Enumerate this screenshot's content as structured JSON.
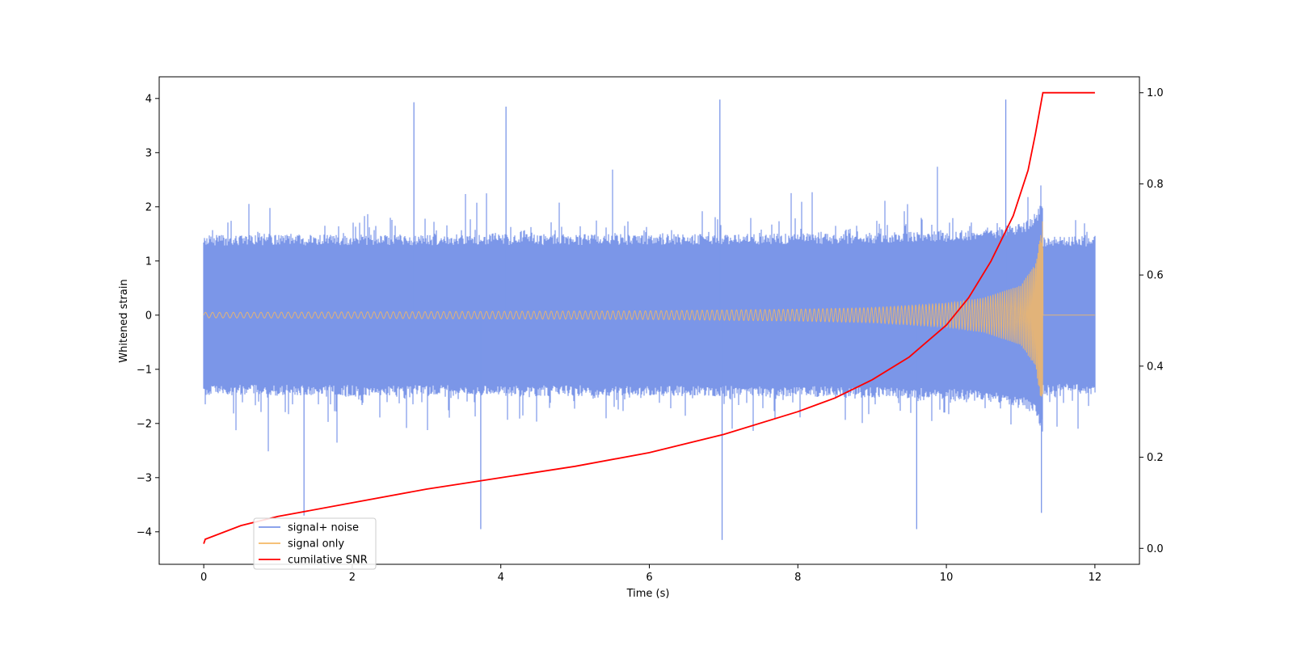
{
  "chart_data": {
    "type": "line",
    "title": "",
    "xlabel": "Time (s)",
    "ylabel": "Whitened strain",
    "y2label": "",
    "xlim": [
      -0.6,
      12.6
    ],
    "ylim": [
      -4.6,
      4.4
    ],
    "y2lim": [
      -0.035,
      1.035
    ],
    "x_ticks": [
      0,
      2,
      4,
      6,
      8,
      10,
      12
    ],
    "x_tick_labels": [
      "0",
      "2",
      "4",
      "6",
      "8",
      "10",
      "12"
    ],
    "y_ticks": [
      -4,
      -3,
      -2,
      -1,
      0,
      1,
      2,
      3,
      4
    ],
    "y_tick_labels": [
      "−4",
      "−3",
      "−2",
      "−1",
      "0",
      "1",
      "2",
      "3",
      "4"
    ],
    "y2_ticks": [
      0.0,
      0.2,
      0.4,
      0.6,
      0.8,
      1.0
    ],
    "y2_tick_labels": [
      "0.0",
      "0.2",
      "0.4",
      "0.6",
      "0.8",
      "1.0"
    ],
    "grid": false,
    "legend_position": "lower-left",
    "series": [
      {
        "name": "signal+ noise",
        "color": "#7b96e8",
        "axis": "left",
        "description_values": {
          "x_range": [
            0,
            12
          ],
          "envelope_upper": 2.3,
          "envelope_lower": -2.3,
          "peak_max": 3.98,
          "peak_min": -4.15
        },
        "notable_peaks": [
          {
            "x": 6.95,
            "y": 3.98
          },
          {
            "x": 10.8,
            "y": 3.98
          },
          {
            "x": 2.83,
            "y": 3.93
          },
          {
            "x": 4.07,
            "y": 3.85
          },
          {
            "x": 6.98,
            "y": -4.15
          },
          {
            "x": 3.73,
            "y": -3.95
          },
          {
            "x": 9.6,
            "y": -3.95
          },
          {
            "x": 1.35,
            "y": -3.7
          },
          {
            "x": 11.28,
            "y": -3.65
          }
        ]
      },
      {
        "name": "signal only",
        "color": "#f5b865",
        "axis": "left",
        "amplitude_envelope": [
          {
            "x": 0.0,
            "a": 0.05
          },
          {
            "x": 2.0,
            "a": 0.06
          },
          {
            "x": 4.0,
            "a": 0.07
          },
          {
            "x": 6.0,
            "a": 0.08
          },
          {
            "x": 8.0,
            "a": 0.11
          },
          {
            "x": 9.0,
            "a": 0.14
          },
          {
            "x": 10.0,
            "a": 0.22
          },
          {
            "x": 10.5,
            "a": 0.32
          },
          {
            "x": 11.0,
            "a": 0.55
          },
          {
            "x": 11.2,
            "a": 0.95
          },
          {
            "x": 11.3,
            "a": 1.8
          }
        ],
        "merger_time": 11.3
      },
      {
        "name": "cumilative SNR",
        "color": "#ff0000",
        "axis": "right",
        "x": [
          0,
          0.02,
          0.5,
          1,
          2,
          3,
          4,
          5,
          6,
          7,
          8,
          8.5,
          9,
          9.5,
          10,
          10.3,
          10.6,
          10.9,
          11.1,
          11.2,
          11.3,
          12
        ],
        "y": [
          0.01,
          0.02,
          0.05,
          0.07,
          0.1,
          0.13,
          0.155,
          0.18,
          0.21,
          0.25,
          0.3,
          0.33,
          0.37,
          0.42,
          0.49,
          0.55,
          0.63,
          0.73,
          0.83,
          0.91,
          1.0,
          1.0
        ]
      }
    ]
  }
}
